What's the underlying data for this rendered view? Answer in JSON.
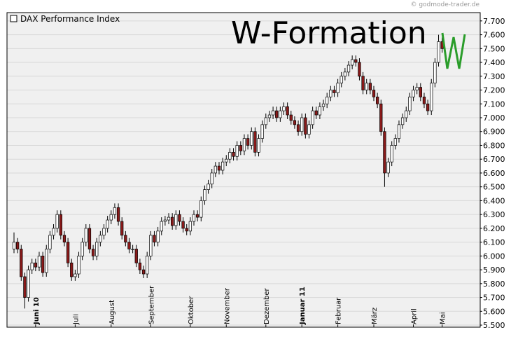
{
  "chart_data": {
    "type": "candlestick",
    "title": "W-Formation",
    "source": "© godmode-trader.de",
    "legend": "top-left",
    "grid": true,
    "up_color": "#ffffff",
    "down_color": "#8b1a1a",
    "categories": [
      null,
      null,
      null,
      null,
      null,
      null,
      "Juni 10",
      null,
      null,
      null,
      null,
      null,
      null,
      null,
      null,
      null,
      null,
      "Juli",
      null,
      null,
      null,
      null,
      null,
      null,
      null,
      null,
      null,
      "August",
      null,
      null,
      null,
      null,
      null,
      null,
      null,
      null,
      null,
      null,
      "September",
      null,
      null,
      null,
      null,
      null,
      null,
      null,
      null,
      null,
      null,
      "Oktober",
      null,
      null,
      null,
      null,
      null,
      null,
      null,
      null,
      null,
      "November",
      null,
      null,
      null,
      null,
      null,
      null,
      null,
      null,
      null,
      null,
      "Dezember",
      null,
      null,
      null,
      null,
      null,
      null,
      null,
      null,
      null,
      "Januar 11",
      null,
      null,
      null,
      null,
      null,
      null,
      null,
      null,
      null,
      "Februar",
      null,
      null,
      null,
      null,
      null,
      null,
      null,
      null,
      null,
      "März",
      null,
      null,
      null,
      null,
      null,
      null,
      null,
      null,
      null,
      null,
      "April",
      null,
      null,
      null,
      null,
      null,
      null,
      null,
      "Mai"
    ],
    "series": [
      {
        "name": "DAX Performance Index",
        "open": [
          6050,
          6100,
          6050,
          5850,
          5700,
          5900,
          5950,
          5920,
          6000,
          5880,
          6050,
          6150,
          6200,
          6300,
          6150,
          6100,
          5950,
          5850,
          5870,
          6000,
          6100,
          6200,
          6050,
          6000,
          6100,
          6150,
          6200,
          6260,
          6300,
          6350,
          6250,
          6150,
          6100,
          6050,
          6050,
          5950,
          5900,
          5870,
          6000,
          6150,
          6100,
          6180,
          6250,
          6260,
          6280,
          6220,
          6300,
          6250,
          6200,
          6180,
          6250,
          6300,
          6280,
          6400,
          6480,
          6520,
          6600,
          6650,
          6620,
          6680,
          6700,
          6750,
          6720,
          6800,
          6760,
          6850,
          6800,
          6900,
          6750,
          6850,
          6950,
          7000,
          7020,
          7050,
          7000,
          7050,
          7080,
          7020,
          6980,
          6950,
          6900,
          7000,
          6880,
          6950,
          7050,
          7020,
          7080,
          7100,
          7150,
          7200,
          7180,
          7250,
          7300,
          7330,
          7380,
          7420,
          7400,
          7300,
          7200,
          7250,
          7200,
          7150,
          7100,
          6900,
          6600,
          6680,
          6800,
          6850,
          6950,
          7000,
          7050,
          7150,
          7200,
          7220,
          7150,
          7100,
          7050,
          7250,
          7400,
          7550
        ],
        "high": [
          6170,
          6130,
          6080,
          5880,
          5930,
          5980,
          5980,
          6030,
          6030,
          6080,
          6180,
          6230,
          6330,
          6330,
          6180,
          6130,
          5980,
          5900,
          6030,
          6130,
          6230,
          6230,
          6080,
          6130,
          6180,
          6230,
          6290,
          6330,
          6380,
          6380,
          6280,
          6180,
          6130,
          6080,
          6080,
          5980,
          5930,
          6030,
          6180,
          6180,
          6210,
          6280,
          6290,
          6310,
          6310,
          6330,
          6330,
          6280,
          6230,
          6280,
          6330,
          6330,
          6430,
          6510,
          6550,
          6630,
          6680,
          6680,
          6710,
          6730,
          6780,
          6780,
          6830,
          6830,
          6880,
          6880,
          6930,
          6930,
          6880,
          6980,
          7030,
          7050,
          7080,
          7080,
          7080,
          7110,
          7110,
          7050,
          7010,
          6980,
          7030,
          7030,
          6980,
          7080,
          7080,
          7110,
          7130,
          7180,
          7230,
          7230,
          7280,
          7330,
          7360,
          7410,
          7450,
          7450,
          7430,
          7330,
          7280,
          7280,
          7230,
          7180,
          7130,
          6930,
          6710,
          6830,
          6880,
          6980,
          7030,
          7080,
          7180,
          7230,
          7250,
          7250,
          7180,
          7130,
          7280,
          7430,
          7600,
          7580
        ],
        "low": [
          6020,
          6020,
          5820,
          5620,
          5670,
          5870,
          5890,
          5890,
          5850,
          5850,
          6020,
          6120,
          6170,
          6120,
          6070,
          5920,
          5820,
          5820,
          5840,
          5970,
          6070,
          6020,
          5970,
          5970,
          6070,
          6120,
          6170,
          6230,
          6270,
          6220,
          6120,
          6070,
          6020,
          6020,
          5920,
          5870,
          5840,
          5840,
          5970,
          6070,
          6070,
          6150,
          6220,
          6230,
          6190,
          6190,
          6220,
          6170,
          6150,
          6150,
          6220,
          6250,
          6250,
          6370,
          6450,
          6490,
          6570,
          6590,
          6590,
          6650,
          6670,
          6690,
          6690,
          6730,
          6730,
          6770,
          6770,
          6720,
          6720,
          6820,
          6920,
          6970,
          6990,
          6970,
          6970,
          7020,
          6990,
          6950,
          6920,
          6870,
          6870,
          6850,
          6850,
          6920,
          6990,
          6990,
          7050,
          7070,
          7120,
          7150,
          7150,
          7220,
          7270,
          7300,
          7350,
          7370,
          7270,
          7170,
          7170,
          7170,
          7120,
          7070,
          6870,
          6500,
          6570,
          6650,
          6770,
          6820,
          6920,
          6970,
          7020,
          7120,
          7170,
          7120,
          7070,
          7020,
          7020,
          7220,
          7370,
          7470
        ],
        "close": [
          6100,
          6050,
          5850,
          5700,
          5900,
          5950,
          5920,
          6000,
          5880,
          6050,
          6150,
          6200,
          6300,
          6150,
          6100,
          5950,
          5850,
          5870,
          6000,
          6100,
          6200,
          6050,
          6000,
          6100,
          6150,
          6200,
          6260,
          6300,
          6350,
          6250,
          6150,
          6100,
          6050,
          6050,
          5950,
          5900,
          5870,
          6000,
          6150,
          6100,
          6180,
          6250,
          6260,
          6280,
          6220,
          6300,
          6250,
          6200,
          6180,
          6250,
          6300,
          6280,
          6400,
          6480,
          6520,
          6600,
          6650,
          6620,
          6680,
          6700,
          6750,
          6720,
          6800,
          6760,
          6850,
          6800,
          6900,
          6750,
          6850,
          6950,
          7000,
          7020,
          7050,
          7000,
          7050,
          7080,
          7020,
          6980,
          6950,
          6900,
          7000,
          6880,
          6950,
          7050,
          7020,
          7080,
          7100,
          7150,
          7200,
          7180,
          7250,
          7300,
          7330,
          7380,
          7420,
          7400,
          7300,
          7200,
          7250,
          7200,
          7150,
          7100,
          6900,
          6600,
          6680,
          6800,
          6850,
          6950,
          7000,
          7050,
          7150,
          7200,
          7220,
          7150,
          7100,
          7050,
          7250,
          7400,
          7550,
          7500
        ]
      }
    ],
    "ylim": [
      5485,
      7760
    ],
    "yticks": [
      {
        "value": 5500,
        "label": "5.500"
      },
      {
        "value": 5600,
        "label": "5.600"
      },
      {
        "value": 5700,
        "label": "5.700"
      },
      {
        "value": 5800,
        "label": "5.800"
      },
      {
        "value": 5900,
        "label": "5.900"
      },
      {
        "value": 6000,
        "label": "6.000"
      },
      {
        "value": 6100,
        "label": "6.100"
      },
      {
        "value": 6200,
        "label": "6.200"
      },
      {
        "value": 6300,
        "label": "6.300"
      },
      {
        "value": 6400,
        "label": "6.400"
      },
      {
        "value": 6500,
        "label": "6.500"
      },
      {
        "value": 6600,
        "label": "6.600"
      },
      {
        "value": 6700,
        "label": "6.700"
      },
      {
        "value": 6800,
        "label": "6.800"
      },
      {
        "value": 6900,
        "label": "6.900"
      },
      {
        "value": 7000,
        "label": "7.000"
      },
      {
        "value": 7100,
        "label": "7.100"
      },
      {
        "value": 7200,
        "label": "7.200"
      },
      {
        "value": 7300,
        "label": "7.300"
      },
      {
        "value": 7400,
        "label": "7.400"
      },
      {
        "value": 7500,
        "label": "7.500"
      },
      {
        "value": 7600,
        "label": "7.600"
      },
      {
        "value": 7700,
        "label": "7.700"
      }
    ]
  }
}
